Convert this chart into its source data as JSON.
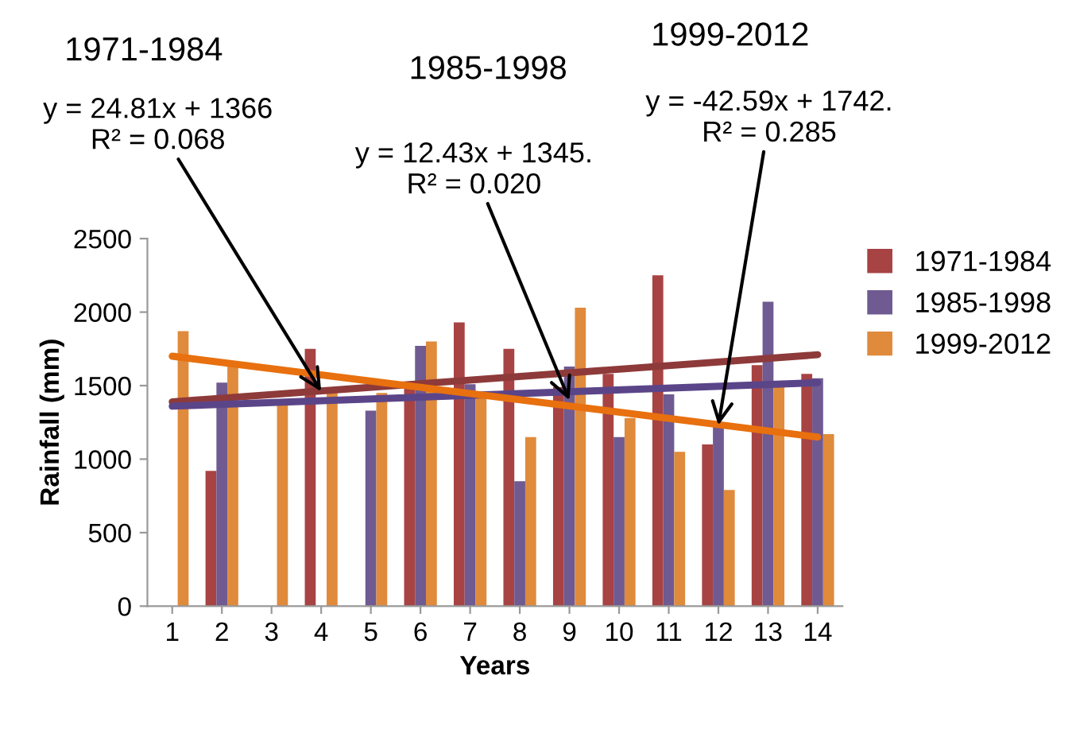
{
  "chart_data": {
    "type": "bar",
    "xlabel": "Years",
    "ylabel": "Rainfall (mm)",
    "categories": [
      "1",
      "2",
      "3",
      "4",
      "5",
      "6",
      "7",
      "8",
      "9",
      "10",
      "11",
      "12",
      "13",
      "14"
    ],
    "series": [
      {
        "name": "1971-1984",
        "color": "#a84343",
        "values": [
          null,
          920,
          null,
          1750,
          null,
          1490,
          1930,
          1750,
          1490,
          1580,
          2250,
          1100,
          1640,
          1580
        ]
      },
      {
        "name": "1985-1998",
        "color": "#6f5a91",
        "values": [
          null,
          1520,
          null,
          null,
          1330,
          1770,
          1510,
          850,
          1630,
          1150,
          1440,
          1220,
          2070,
          1550
        ]
      },
      {
        "name": "1999-2012",
        "color": "#e08a3c",
        "values": [
          1870,
          1640,
          1380,
          1460,
          1450,
          1800,
          1420,
          1150,
          2030,
          1280,
          1050,
          790,
          1490,
          1170
        ]
      },
      {
        "type": "line",
        "color": "#8e3a3a",
        "x": [
          "1",
          "14"
        ],
        "values": [
          1390,
          1710
        ]
      },
      {
        "type": "line",
        "color": "#5b4589",
        "x": [
          "1",
          "14"
        ],
        "values": [
          1360,
          1520
        ]
      },
      {
        "type": "line",
        "color": "#e8700f",
        "x": [
          "1",
          "14"
        ],
        "values": [
          1700,
          1150
        ]
      }
    ],
    "annotations": [
      "1971-1984",
      "1985-1998",
      "1999-2012",
      {
        "text": "y = 24.81x + 1366\nR² = 0.068",
        "x": "4",
        "y": 1460
      },
      {
        "text": "y = 12.43x + 1345.\nR² = 0.020",
        "x": "9",
        "y": 1400
      },
      {
        "text": "y = -42.59x + 1742.\nR² = 0.285",
        "x": "12",
        "y": 1230
      }
    ],
    "ylim": [
      0,
      2500
    ],
    "yticks": [
      0,
      500,
      1000,
      1500,
      2000,
      2500
    ],
    "grid": false,
    "legend": "right"
  }
}
